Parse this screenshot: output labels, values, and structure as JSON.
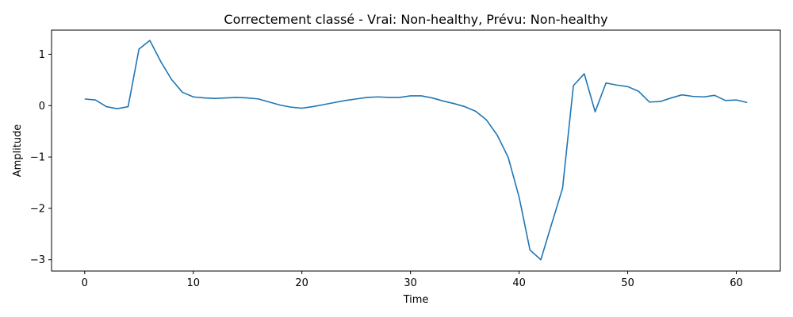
{
  "chart_data": {
    "type": "line",
    "title": "Correctement classé - Vrai: Non-healthy, Prévu: Non-healthy",
    "xlabel": "Time",
    "ylabel": "Amplitude",
    "xlim": [
      -3.05,
      64.05
    ],
    "ylim": [
      -3.22,
      1.47
    ],
    "xticks": [
      0,
      10,
      20,
      30,
      40,
      50,
      60
    ],
    "yticks": [
      -3,
      -2,
      -1,
      0,
      1
    ],
    "grid": false,
    "color": "#1f77b4",
    "series": [
      {
        "x": [
          0,
          1,
          2,
          3,
          4,
          5,
          6,
          7,
          8,
          9,
          10,
          11,
          12,
          13,
          14,
          15,
          16,
          17,
          18,
          19,
          20,
          21,
          22,
          23,
          24,
          25,
          26,
          27,
          28,
          29,
          30,
          31,
          32,
          33,
          34,
          35,
          36,
          37,
          38,
          39,
          40,
          41,
          42,
          43,
          44,
          45,
          46,
          47,
          48,
          49,
          50,
          51,
          52,
          53,
          54,
          55,
          56,
          57,
          58,
          59,
          60,
          61
        ],
        "y": [
          0.13,
          0.11,
          -0.02,
          -0.06,
          -0.02,
          1.1,
          1.27,
          0.86,
          0.51,
          0.26,
          0.17,
          0.15,
          0.14,
          0.15,
          0.16,
          0.15,
          0.13,
          0.07,
          0.01,
          -0.03,
          -0.05,
          -0.02,
          0.02,
          0.06,
          0.1,
          0.13,
          0.16,
          0.17,
          0.16,
          0.16,
          0.19,
          0.19,
          0.15,
          0.09,
          0.04,
          -0.02,
          -0.11,
          -0.28,
          -0.58,
          -1.01,
          -1.78,
          -2.81,
          -3.0,
          -2.3,
          -1.61,
          0.39,
          0.62,
          -0.12,
          0.44,
          0.4,
          0.37,
          0.28,
          0.07,
          0.08,
          0.15,
          0.21,
          0.18,
          0.17,
          0.2,
          0.1,
          0.11,
          0.06
        ]
      }
    ]
  }
}
